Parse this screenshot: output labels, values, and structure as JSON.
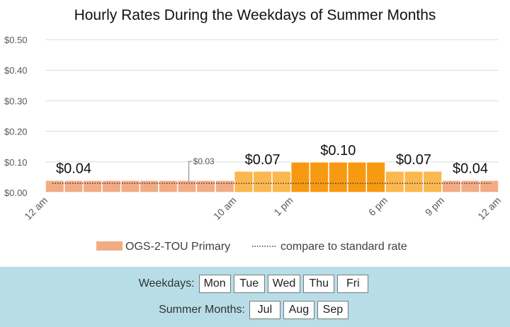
{
  "chart_data": {
    "type": "bar",
    "title": "Hourly Rates During the Weekdays of Summer Months",
    "x": [
      0,
      1,
      2,
      3,
      4,
      5,
      6,
      7,
      8,
      9,
      10,
      11,
      12,
      13,
      14,
      15,
      16,
      17,
      18,
      19,
      20,
      21,
      22,
      23
    ],
    "values": [
      0.04,
      0.04,
      0.04,
      0.04,
      0.04,
      0.04,
      0.04,
      0.04,
      0.04,
      0.04,
      0.07,
      0.07,
      0.07,
      0.1,
      0.1,
      0.1,
      0.1,
      0.1,
      0.07,
      0.07,
      0.07,
      0.04,
      0.04,
      0.04
    ],
    "y_tick_labels": [
      "$0.00",
      "$0.10",
      "$0.20",
      "$0.30",
      "$0.40",
      "$0.50"
    ],
    "ylim": [
      0,
      0.5
    ],
    "x_tick_labels": [
      {
        "hour": 0,
        "label": "12 am"
      },
      {
        "hour": 10,
        "label": "10 am"
      },
      {
        "hour": 13,
        "label": "1 pm"
      },
      {
        "hour": 18,
        "label": "6 pm"
      },
      {
        "hour": 21,
        "label": "9 pm"
      },
      {
        "hour": 24,
        "label": "12 am"
      }
    ],
    "data_labels": [
      {
        "hour": 1.5,
        "value": 0.04,
        "text": "$0.04"
      },
      {
        "hour": 11.5,
        "value": 0.07,
        "text": "$0.07"
      },
      {
        "hour": 15.5,
        "value": 0.1,
        "text": "$0.10"
      },
      {
        "hour": 19.5,
        "value": 0.07,
        "text": "$0.07"
      },
      {
        "hour": 22.5,
        "value": 0.04,
        "text": "$0.04"
      }
    ],
    "standard_rate": {
      "value": 0.03,
      "label": "$0.03"
    },
    "tier_colors": {
      "0.04": "#f2ac84",
      "0.07": "#fbb84f",
      "0.10": "#f79a12"
    },
    "legend": {
      "placement": "bottom",
      "series_label": "OGS-2-TOU Primary",
      "series_color": "#f2ac84",
      "line_label": "compare to standard rate"
    },
    "grid": true
  },
  "controls": {
    "weekdays_label": "Weekdays:",
    "weekdays": [
      "Mon",
      "Tue",
      "Wed",
      "Thu",
      "Fri"
    ],
    "months_label": "Summer Months:",
    "months": [
      "Jul",
      "Aug",
      "Sep"
    ]
  },
  "colors": {
    "panel_background": "#b7dde8",
    "gridline": "#d9d9d9",
    "dotted_line": "#404040"
  }
}
